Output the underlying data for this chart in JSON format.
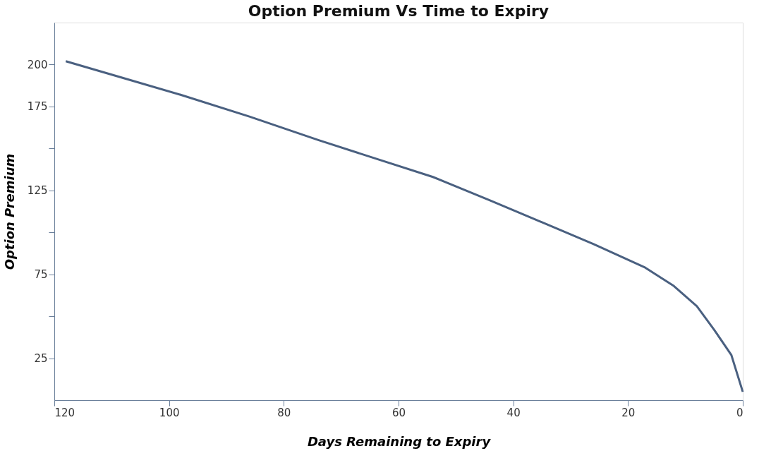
{
  "chart_data": {
    "type": "line",
    "title": "Option Premium Vs Time to Expiry",
    "xlabel": "Days Remaining to Expiry",
    "ylabel": "Option Premium",
    "x": [
      118,
      108,
      98,
      86,
      74,
      64,
      54,
      44,
      35,
      26,
      17,
      12,
      8,
      5,
      2,
      0
    ],
    "series": [
      {
        "color": "#4a6080",
        "values": [
          202,
          192,
          182,
          169,
          155,
          144,
          133,
          119,
          106,
          93,
          79,
          68,
          56,
          42,
          27,
          5
        ]
      }
    ],
    "xlim": [
      120,
      0
    ],
    "xticks": [
      120,
      100,
      80,
      60,
      40,
      20,
      0
    ],
    "ylim": [
      0,
      225
    ],
    "yticks": [
      {
        "value": 25,
        "label": "25"
      },
      {
        "value": 50,
        "label": null
      },
      {
        "value": 75,
        "label": "75"
      },
      {
        "value": 100,
        "label": null
      },
      {
        "value": 125,
        "label": "125"
      },
      {
        "value": 150,
        "label": null
      },
      {
        "value": 175,
        "label": "175"
      },
      {
        "value": 200,
        "label": "200"
      }
    ],
    "grid": false,
    "marker": "none",
    "line_style": "solid"
  }
}
